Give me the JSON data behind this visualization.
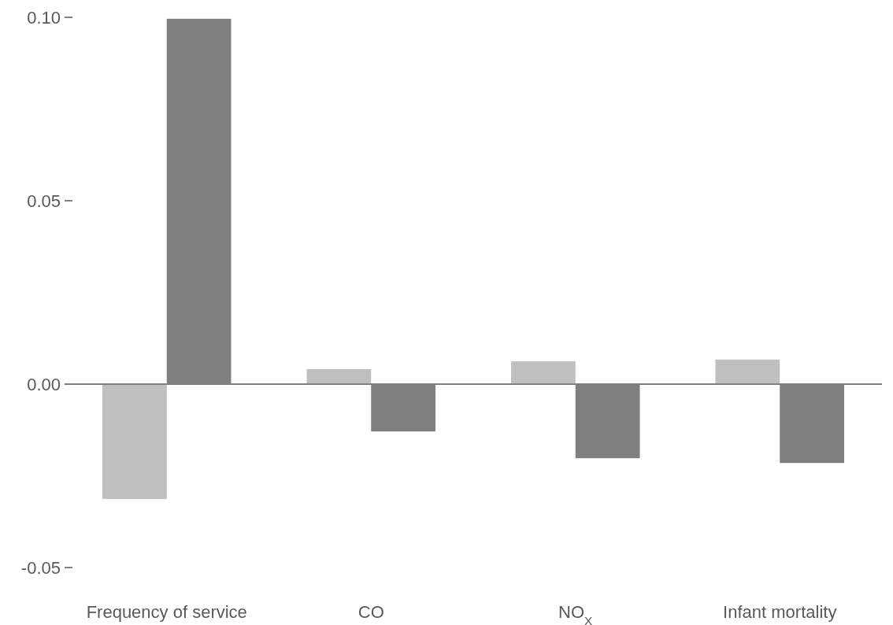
{
  "chart_data": {
    "type": "bar",
    "categories": [
      "Frequency of service",
      "CO",
      "NO$_{X}$",
      "Infant mortality"
    ],
    "series": [
      {
        "color": "#bfbfbf",
        "values": [
          -0.0313,
          0.0041,
          0.0062,
          0.0067
        ]
      },
      {
        "color": "#7f7f7f",
        "values": [
          0.0996,
          -0.0129,
          -0.0202,
          -0.0215
        ]
      }
    ],
    "ylim": [
      -0.05,
      0.1
    ],
    "yticks": [
      -0.05,
      {
        "value": 0,
        "label": "0.00"
      },
      0.05,
      {
        "value": 0.1,
        "label": "0.10"
      }
    ],
    "ref_lines": [
      {
        "axis": "y",
        "value": 0,
        "color": "#7f7f7f"
      }
    ]
  }
}
